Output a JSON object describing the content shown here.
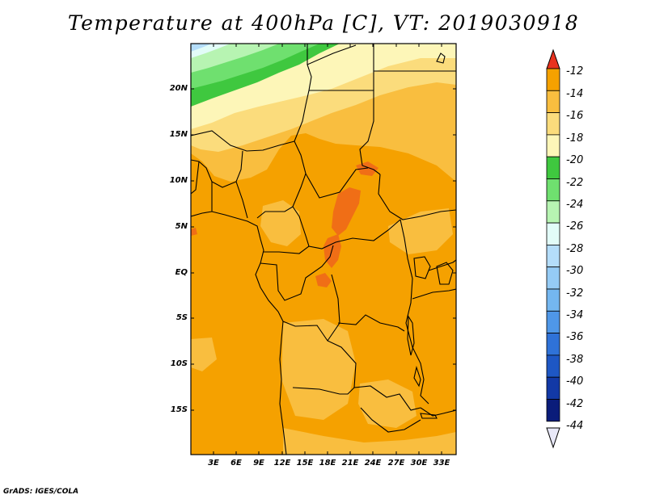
{
  "title": "Temperature at 400hPa [C], VT: 2019030918",
  "footer": "GrADS: IGES/COLA",
  "map": {
    "lat_labels": [
      "20N",
      "15N",
      "10N",
      "5N",
      "EQ",
      "5S",
      "10S",
      "15S"
    ],
    "lon_labels": [
      "3E",
      "6E",
      "9E",
      "12E",
      "15E",
      "18E",
      "21E",
      "24E",
      "27E",
      "30E",
      "33E"
    ],
    "colors": {
      "c_m14_m12": "#f06e16",
      "c_m16_m14": "#f5a100",
      "c_m18_m16": "#f9be3f",
      "c_m20_m18": "#fbdc7c",
      "c_m22_m20": "#fdf6b8",
      "c_m24_m22": "#3fc83f",
      "c_m26_m24": "#6fe06f",
      "c_m28_m26": "#b7f4b2",
      "c_m30_m28": "#e2fcf8",
      "c_m32_m30": "#b4ddfa",
      "c_m34_m32": "#95cbf5",
      "border": "#000000"
    }
  },
  "colorbar": {
    "labels": [
      "-12",
      "-14",
      "-16",
      "-18",
      "-20",
      "-22",
      "-24",
      "-26",
      "-28",
      "-30",
      "-32",
      "-34",
      "-36",
      "-38",
      "-40",
      "-42",
      "-44"
    ],
    "colors": [
      "#f06e16",
      "#f5a100",
      "#f9be3f",
      "#fbdc7c",
      "#fdf6b8",
      "#3fc83f",
      "#6fe06f",
      "#b7f4b2",
      "#e2fcf8",
      "#b4ddfa",
      "#95cbf5",
      "#74b7f0",
      "#4f97e8",
      "#2f72d8",
      "#1e57c4",
      "#1239a6",
      "#0a1c7a"
    ],
    "top_arrow_color": "#e8321e",
    "bottom_arrow_color": "#e8e8f8"
  }
}
